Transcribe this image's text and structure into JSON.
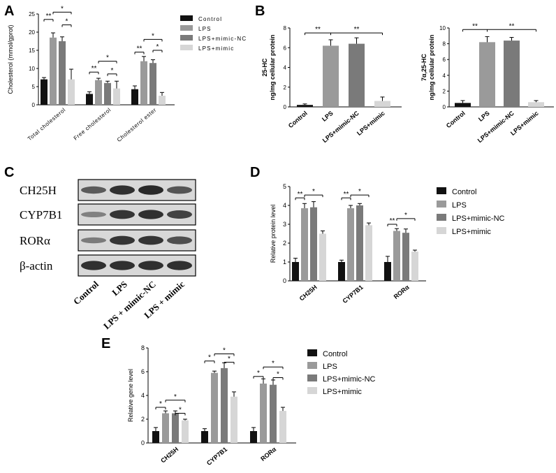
{
  "colors": {
    "control": "#111111",
    "lps": "#9a9a9a",
    "lps_mimic_nc": "#7a7a7a",
    "lps_mimic": "#d6d6d6",
    "band": "#222222"
  },
  "chart_data": [
    {
      "panel": "A",
      "type": "bar",
      "ylabel": "Cholesterol (mmol/gprot)",
      "ylim": [
        0,
        25
      ],
      "yticks": [
        0,
        5,
        10,
        15,
        20,
        25
      ],
      "categories": [
        "Total cholesterol",
        "Free cholesterol",
        "Cholesterol ester"
      ],
      "legend": [
        "Control",
        "LPS",
        "LPS+mimic-NC",
        "LPS+mimic"
      ],
      "series": [
        {
          "name": "Control",
          "values": [
            7.0,
            3.0,
            4.3
          ],
          "errors": [
            0.5,
            0.6,
            0.9
          ]
        },
        {
          "name": "LPS",
          "values": [
            18.5,
            6.8,
            12.0
          ],
          "errors": [
            1.3,
            0.5,
            1.3
          ]
        },
        {
          "name": "LPS+mimic-NC",
          "values": [
            17.5,
            6.0,
            11.5
          ],
          "errors": [
            1.2,
            0.5,
            0.9
          ]
        },
        {
          "name": "LPS+mimic",
          "values": [
            7.0,
            4.5,
            2.5
          ],
          "errors": [
            2.8,
            2.0,
            0.9
          ]
        }
      ],
      "significance": [
        {
          "group": 0,
          "from": 0,
          "to": 1,
          "level": 23.5,
          "label": "**"
        },
        {
          "group": 0,
          "from": 1,
          "to": 3,
          "level": 25.5,
          "label": "*"
        },
        {
          "group": 0,
          "from": 2,
          "to": 3,
          "level": 22.0,
          "label": "*"
        },
        {
          "group": 1,
          "from": 0,
          "to": 1,
          "level": 9.0,
          "label": "**"
        },
        {
          "group": 1,
          "from": 1,
          "to": 3,
          "level": 12.0,
          "label": "*"
        },
        {
          "group": 1,
          "from": 2,
          "to": 3,
          "level": 8.5,
          "label": "*"
        },
        {
          "group": 2,
          "from": 0,
          "to": 1,
          "level": 14.5,
          "label": "**"
        },
        {
          "group": 2,
          "from": 1,
          "to": 3,
          "level": 18.0,
          "label": "*"
        },
        {
          "group": 2,
          "from": 2,
          "to": 3,
          "level": 15.0,
          "label": "*"
        }
      ]
    },
    {
      "panel": "B-left",
      "type": "bar",
      "ylabel": "25-HC",
      "ylabel2": "ng/mg cellular protein",
      "ylim": [
        0,
        8
      ],
      "yticks": [
        0,
        2,
        4,
        6,
        8
      ],
      "categories": [
        "Control",
        "LPS",
        "LPS+mimic-NC",
        "LPS+mimic"
      ],
      "values": [
        0.2,
        6.2,
        6.4,
        0.6
      ],
      "errors": [
        0.1,
        0.6,
        0.6,
        0.4
      ],
      "significance": [
        {
          "from": 0,
          "to": 1,
          "level": 7.5,
          "label": "**"
        },
        {
          "from": 1,
          "to": 3,
          "level": 7.5,
          "label": "**"
        }
      ]
    },
    {
      "panel": "B-right",
      "type": "bar",
      "ylabel": "7α,25-HC",
      "ylabel2": "ng/mg cellular protein",
      "ylim": [
        0,
        10
      ],
      "yticks": [
        0,
        2,
        4,
        6,
        8,
        10
      ],
      "categories": [
        "Control",
        "LPS",
        "LPS+mimic-NC",
        "LPS+mimic"
      ],
      "values": [
        0.5,
        8.2,
        8.4,
        0.6
      ],
      "errors": [
        0.3,
        0.7,
        0.4,
        0.2
      ],
      "significance": [
        {
          "from": 0,
          "to": 1,
          "level": 9.8,
          "label": "**"
        },
        {
          "from": 1,
          "to": 3,
          "level": 9.8,
          "label": "**"
        }
      ]
    },
    {
      "panel": "D",
      "type": "bar",
      "ylabel": "Relative protein level",
      "ylim": [
        0,
        5
      ],
      "yticks": [
        0,
        1,
        2,
        3,
        4,
        5
      ],
      "categories": [
        "CH25H",
        "CYP7B1",
        "RORα"
      ],
      "legend": [
        "Control",
        "LPS",
        "LPS+mimic-NC",
        "LPS+mimic"
      ],
      "series": [
        {
          "name": "Control",
          "values": [
            1.0,
            1.0,
            1.0
          ],
          "errors": [
            0.2,
            0.1,
            0.3
          ]
        },
        {
          "name": "LPS",
          "values": [
            3.85,
            3.85,
            2.65
          ],
          "errors": [
            0.25,
            0.15,
            0.12
          ]
        },
        {
          "name": "LPS+mimic-NC",
          "values": [
            3.9,
            4.0,
            2.55
          ],
          "errors": [
            0.3,
            0.1,
            0.2
          ]
        },
        {
          "name": "LPS+mimic",
          "values": [
            2.5,
            2.95,
            1.55
          ],
          "errors": [
            0.15,
            0.12,
            0.08
          ]
        }
      ],
      "significance": [
        {
          "group": 0,
          "from": 0,
          "to": 1,
          "level": 4.4,
          "label": "**"
        },
        {
          "group": 0,
          "from": 1,
          "to": 3,
          "level": 4.55,
          "label": "*"
        },
        {
          "group": 1,
          "from": 0,
          "to": 1,
          "level": 4.4,
          "label": "**"
        },
        {
          "group": 1,
          "from": 1,
          "to": 3,
          "level": 4.55,
          "label": "*"
        },
        {
          "group": 2,
          "from": 0,
          "to": 1,
          "level": 3.0,
          "label": "**"
        },
        {
          "group": 2,
          "from": 1,
          "to": 3,
          "level": 3.3,
          "label": "*"
        }
      ]
    },
    {
      "panel": "E",
      "type": "bar",
      "ylabel": "Relative gene level",
      "ylim": [
        0,
        8
      ],
      "yticks": [
        0,
        2,
        4,
        6,
        8
      ],
      "categories": [
        "CH25H",
        "CYP7B1",
        "RORα"
      ],
      "legend": [
        "Control",
        "LPS",
        "LPS+mimic-NC",
        "LPS+mimic"
      ],
      "series": [
        {
          "name": "Control",
          "values": [
            1.0,
            1.0,
            1.0
          ],
          "errors": [
            0.3,
            0.2,
            0.3
          ]
        },
        {
          "name": "LPS",
          "values": [
            2.5,
            5.9,
            5.0
          ],
          "errors": [
            0.2,
            0.15,
            0.4
          ]
        },
        {
          "name": "LPS+mimic-NC",
          "values": [
            2.5,
            6.3,
            4.9
          ],
          "errors": [
            0.2,
            0.45,
            0.4
          ]
        },
        {
          "name": "LPS+mimic",
          "values": [
            1.9,
            3.9,
            2.7
          ],
          "errors": [
            0.1,
            0.4,
            0.3
          ]
        }
      ],
      "significance": [
        {
          "group": 0,
          "from": 0,
          "to": 1,
          "level": 3.0,
          "label": "*"
        },
        {
          "group": 0,
          "from": 1,
          "to": 3,
          "level": 3.6,
          "label": "*"
        },
        {
          "group": 0,
          "from": 2,
          "to": 3,
          "level": 2.5,
          "label": "*"
        },
        {
          "group": 1,
          "from": 0,
          "to": 1,
          "level": 6.9,
          "label": "*"
        },
        {
          "group": 1,
          "from": 1,
          "to": 3,
          "level": 7.5,
          "label": "*"
        },
        {
          "group": 1,
          "from": 2,
          "to": 3,
          "level": 6.8,
          "label": "*"
        },
        {
          "group": 2,
          "from": 0,
          "to": 1,
          "level": 5.6,
          "label": "*"
        },
        {
          "group": 2,
          "from": 1,
          "to": 3,
          "level": 6.4,
          "label": "*"
        },
        {
          "group": 2,
          "from": 2,
          "to": 3,
          "level": 5.5,
          "label": "*"
        }
      ]
    }
  ],
  "blot": {
    "panel": "C",
    "rows": [
      "CH25H",
      "CYP7B1",
      "RORα",
      "β-actin"
    ],
    "columns": [
      "Control",
      "LPS",
      "LPS + mimic-NC",
      "LPS + mimic"
    ],
    "intensities": [
      [
        0.55,
        0.9,
        0.95,
        0.6
      ],
      [
        0.25,
        0.85,
        0.9,
        0.75
      ],
      [
        0.3,
        0.85,
        0.85,
        0.65
      ],
      [
        0.9,
        0.9,
        0.9,
        0.9
      ]
    ]
  }
}
